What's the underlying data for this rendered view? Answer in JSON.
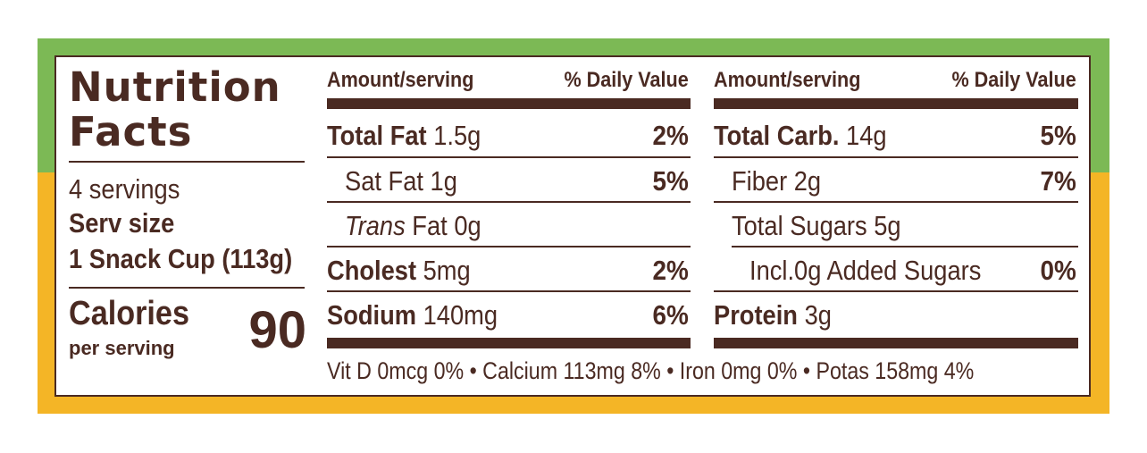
{
  "colors": {
    "top_band": "#7cb955",
    "bottom_band": "#f4b526",
    "ink": "#4a2a22"
  },
  "title_line1": "Nutrition",
  "title_line2": "Facts",
  "servings": "4 servings",
  "serv_size_label": "Serv size",
  "serv_size_value": "1 Snack Cup (113g)",
  "calories_label": "Calories",
  "calories_sub": "per serving",
  "calories_value": "90",
  "col1": {
    "hdr_amount": "Amount/serving",
    "hdr_dv": "% Daily Value",
    "rows": [
      {
        "label": "Total Fat",
        "amount": "1.5g",
        "dv": "2%"
      },
      {
        "label": "Sat Fat",
        "amount": "1g",
        "dv": "5%"
      },
      {
        "label_italic": "Trans",
        "label": "Fat",
        "amount": "0g",
        "dv": ""
      },
      {
        "label": "Cholest",
        "amount": "5mg",
        "dv": "2%"
      },
      {
        "label": "Sodium",
        "amount": "140mg",
        "dv": "6%"
      }
    ]
  },
  "col2": {
    "hdr_amount": "Amount/serving",
    "hdr_dv": "% Daily Value",
    "rows": [
      {
        "label": "Total Carb.",
        "amount": "14g",
        "dv": "5%"
      },
      {
        "label": "Fiber",
        "amount": "2g",
        "dv": "7%"
      },
      {
        "label": "Total Sugars",
        "amount": "5g",
        "dv": ""
      },
      {
        "label": "Incl.",
        "amount": "0g Added Sugars",
        "dv": "0%"
      },
      {
        "label": "Protein",
        "amount": "3g",
        "dv": ""
      }
    ]
  },
  "footer": "Vit D 0mcg 0% • Calcium 113mg 8% • Iron 0mg 0% • Potas 158mg 4%"
}
